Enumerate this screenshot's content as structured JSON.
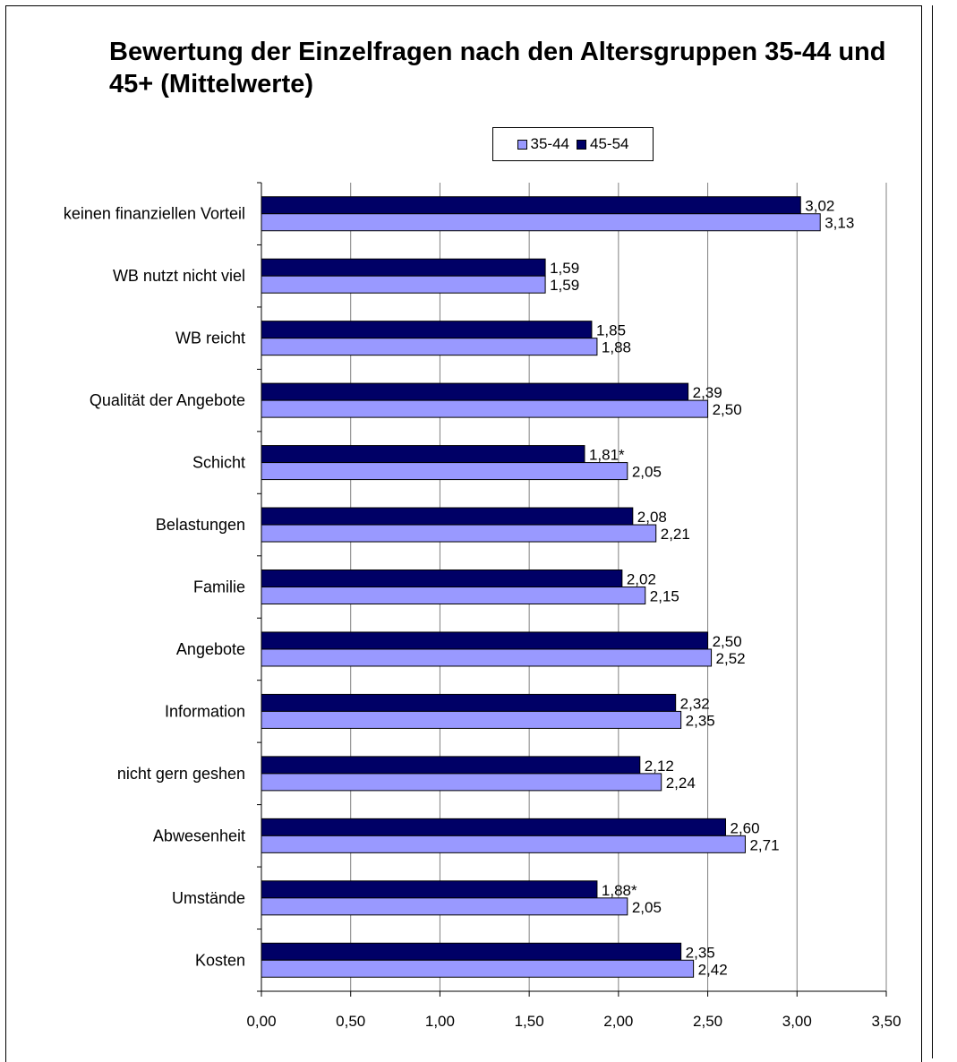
{
  "chart_data": {
    "type": "bar",
    "orientation": "horizontal",
    "title": "Bewertung der Einzelfragen nach den Altersgruppen 35-44 und 45+ (Mittelwerte)",
    "categories": [
      "keinen finanziellen Vorteil",
      "WB nutzt nicht viel",
      "WB reicht",
      "Qualität der Angebote",
      "Schicht",
      "Belastungen",
      "Familie",
      "Angebote",
      "Information",
      "nicht gern geshen",
      "Abwesenheit",
      "Umstände",
      "Kosten"
    ],
    "series": [
      {
        "name": "35-44",
        "color": "#9999ff",
        "values": [
          3.13,
          1.59,
          1.88,
          2.5,
          2.05,
          2.21,
          2.15,
          2.52,
          2.35,
          2.24,
          2.71,
          2.05,
          2.42
        ],
        "labels": [
          "3,13",
          "1,59",
          "1,88",
          "2,50",
          "2,05",
          "2,21",
          "2,15",
          "2,52",
          "2,35",
          "2,24",
          "2,71",
          "2,05",
          "2,42"
        ]
      },
      {
        "name": "45-54",
        "color": "#000066",
        "values": [
          3.02,
          1.59,
          1.85,
          2.39,
          1.81,
          2.08,
          2.02,
          2.5,
          2.32,
          2.12,
          2.6,
          1.88,
          2.35
        ],
        "labels": [
          "3,02",
          "1,59",
          "1,85",
          "2,39",
          "1,81*",
          "2,08",
          "2,02",
          "2,50",
          "2,32",
          "2,12",
          "2,60",
          "1,88*",
          "2,35"
        ]
      }
    ],
    "xlim": [
      0,
      3.5
    ],
    "xticks": [
      0,
      0.5,
      1,
      1.5,
      2,
      2.5,
      3,
      3.5
    ],
    "xtick_labels": [
      "0,00",
      "0,50",
      "1,00",
      "1,50",
      "2,00",
      "2,50",
      "3,00",
      "3,50"
    ],
    "grid": true,
    "legend_position": "top-center"
  }
}
